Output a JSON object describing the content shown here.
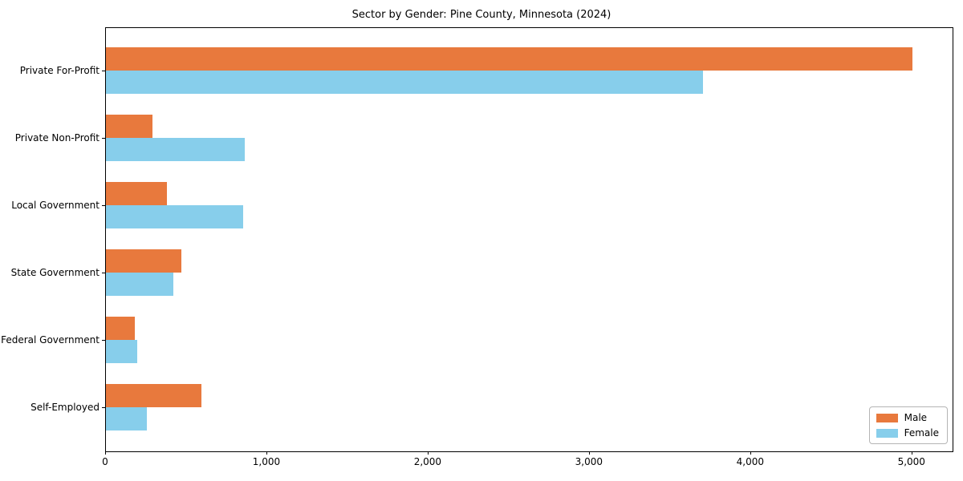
{
  "title": "Sector by Gender: Pine County, Minnesota (2024)",
  "colors": {
    "male": "#e8793d",
    "female": "#87ceeb",
    "spine": "#000000",
    "legend_border": "#b5b5b5",
    "background": "#ffffff"
  },
  "chart_data": {
    "type": "bar",
    "orientation": "horizontal",
    "title": "Sector by Gender: Pine County, Minnesota (2024)",
    "categories": [
      "Private For-Profit",
      "Private Non-Profit",
      "Local Government",
      "State Government",
      "Federal Government",
      "Self-Employed"
    ],
    "series": [
      {
        "name": "Male",
        "color": "#e8793d",
        "values": [
          5000,
          290,
          380,
          470,
          180,
          590
        ]
      },
      {
        "name": "Female",
        "color": "#87ceeb",
        "values": [
          3700,
          860,
          850,
          420,
          195,
          255
        ]
      }
    ],
    "xlabel": "",
    "ylabel": "",
    "xlim": [
      0,
      5250
    ],
    "xticks": [
      0,
      1000,
      2000,
      3000,
      4000,
      5000
    ],
    "xtick_labels": [
      "0",
      "1,000",
      "2,000",
      "3,000",
      "4,000",
      "5,000"
    ],
    "grid": false,
    "legend_position": "lower right"
  }
}
